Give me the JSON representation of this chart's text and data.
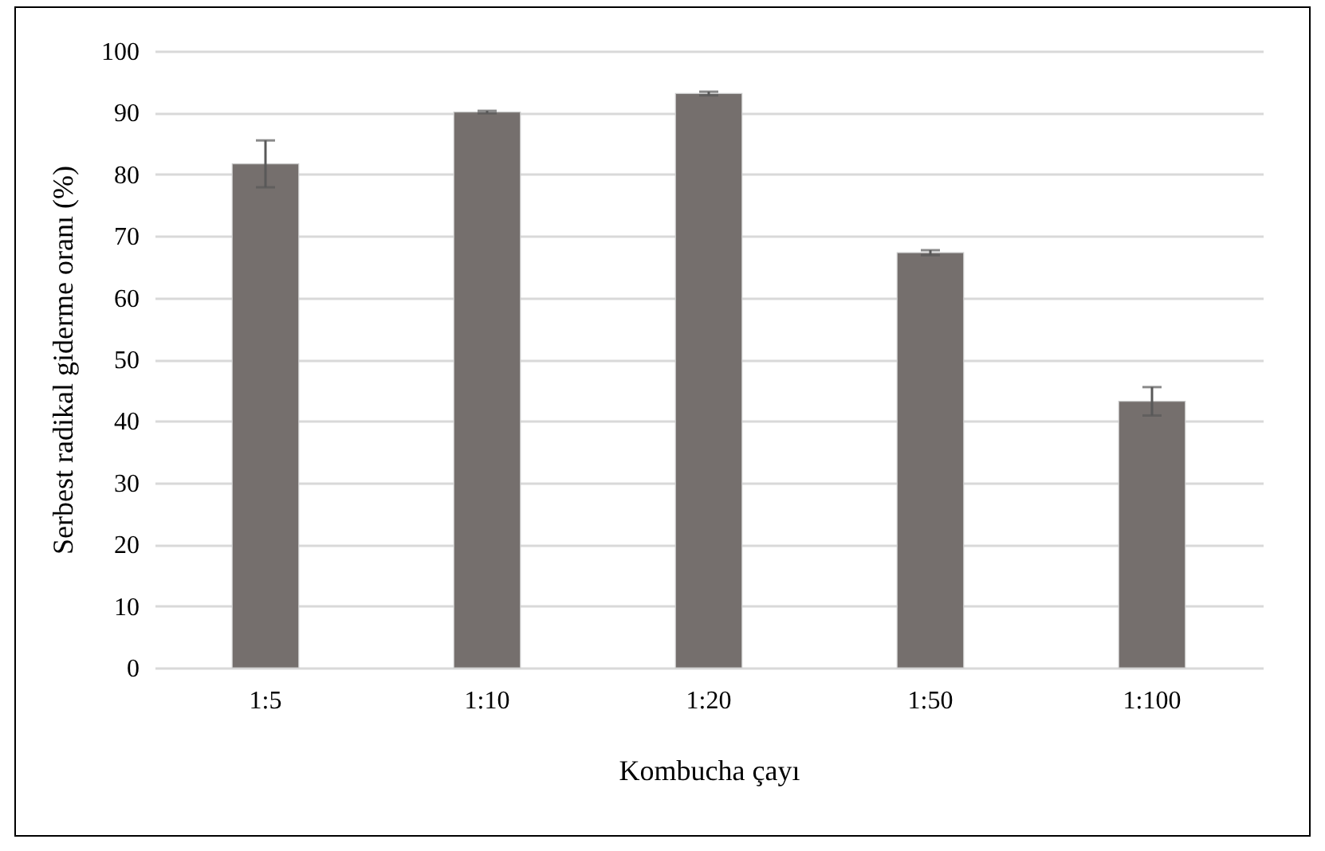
{
  "chart_data": {
    "type": "bar",
    "categories": [
      "1:5",
      "1:10",
      "1:20",
      "1:50",
      "1:100"
    ],
    "values": [
      81.7,
      90.1,
      93.1,
      67.3,
      43.2
    ],
    "errors": [
      3.8,
      0.2,
      0.3,
      0.4,
      2.3
    ],
    "color": "#756f6d",
    "xlabel": "Kombucha çayı",
    "ylabel": "Serbest radikal giderme oranı (%)",
    "ylim": [
      0,
      100
    ],
    "yticks": [
      0,
      10,
      20,
      30,
      40,
      50,
      60,
      70,
      80,
      90,
      100
    ],
    "grid": "y"
  }
}
